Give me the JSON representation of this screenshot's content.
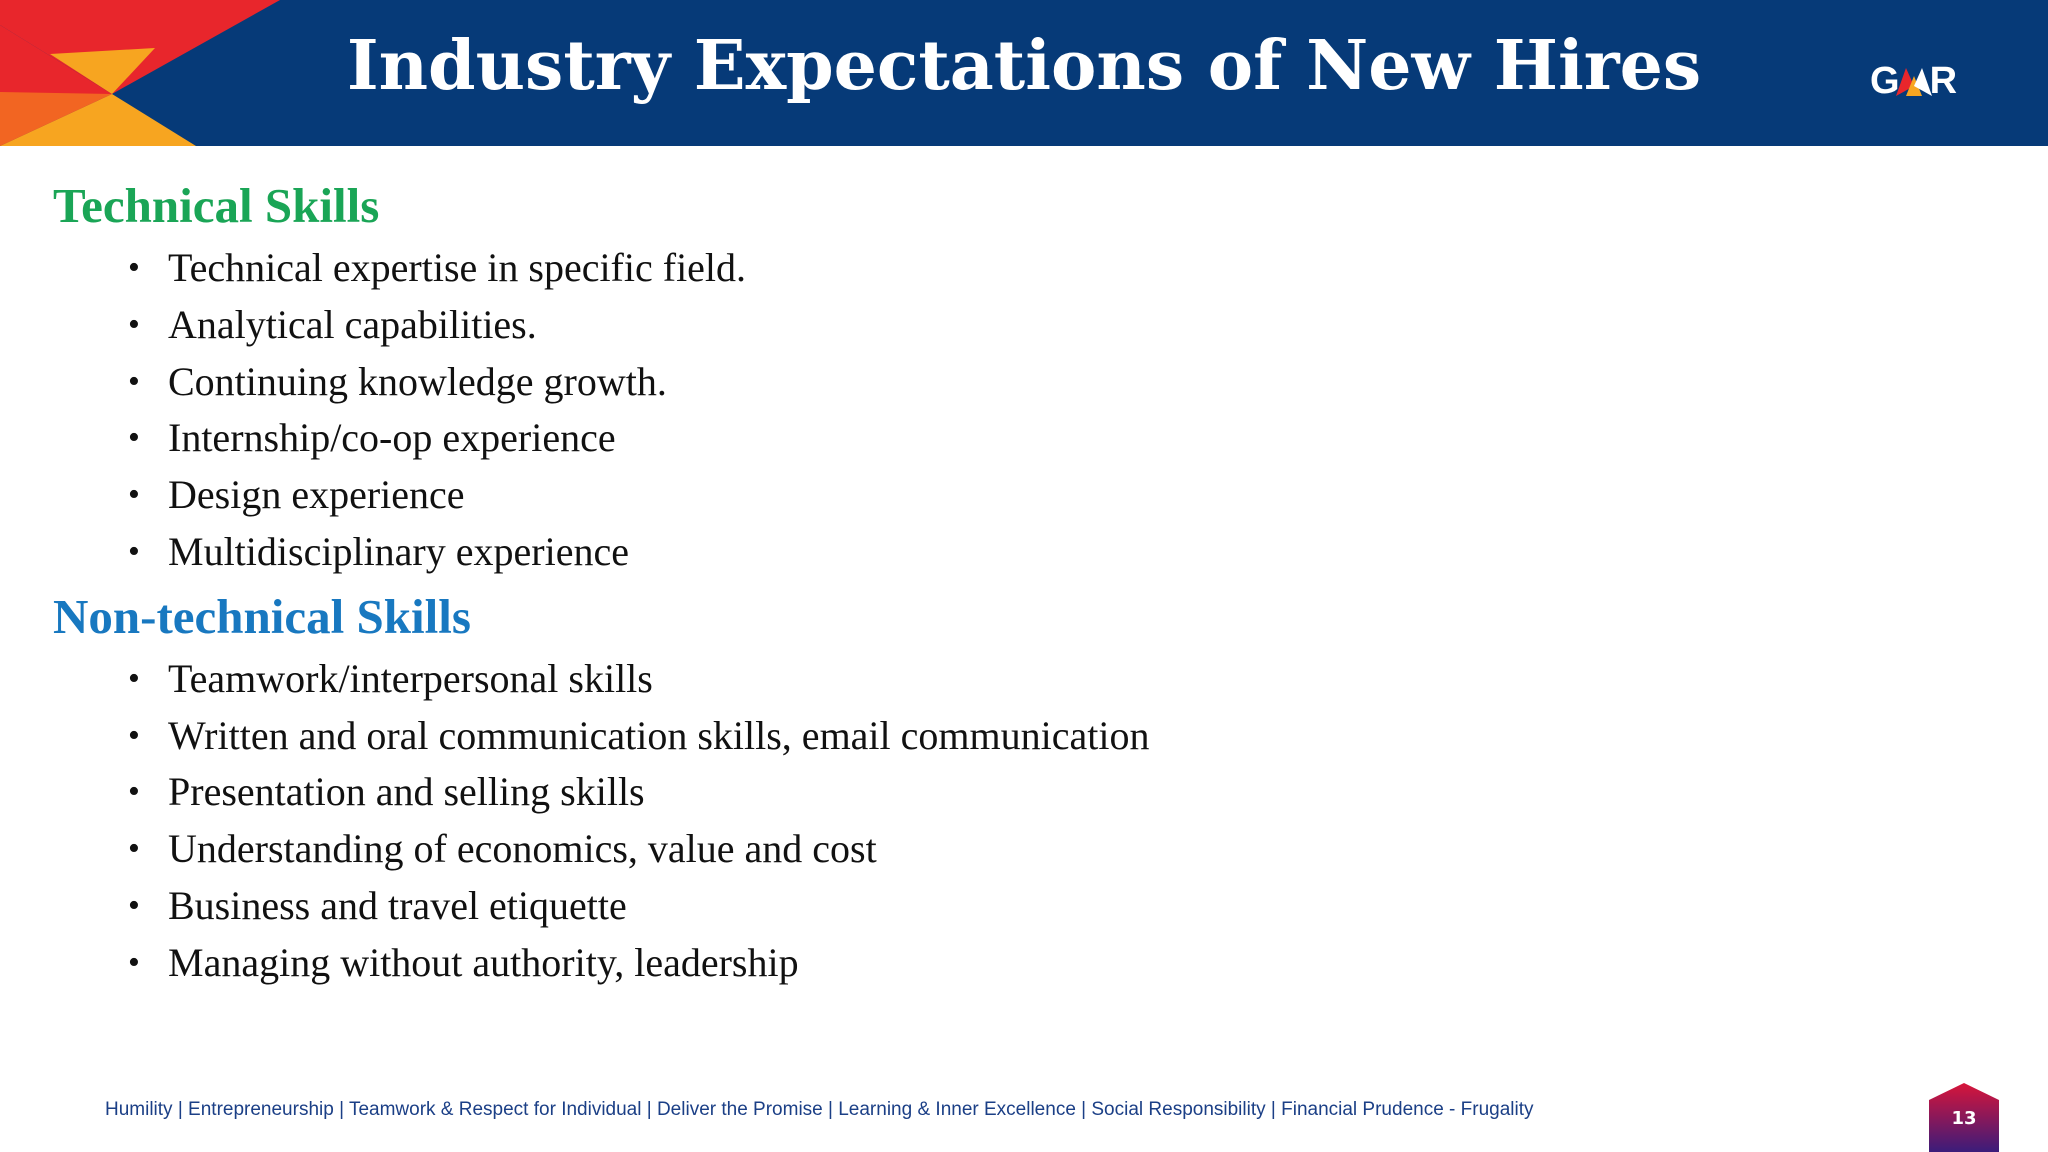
{
  "slide": {
    "title": "Industry Expectations of New Hires",
    "logo_text_left": "G",
    "logo_text_right": "R",
    "logo_icon": "gmr-logo-icon"
  },
  "sections": [
    {
      "heading": "Technical Skills",
      "color": "#1aa556",
      "items": [
        "Technical expertise in specific field.",
        "Analytical capabilities.",
        "Continuing knowledge growth.",
        "Internship/co-op experience",
        "Design experience",
        "Multidisciplinary experience"
      ]
    },
    {
      "heading": "Non-technical Skills",
      "color": "#1878c0",
      "items": [
        "Teamwork/interpersonal skills",
        "Written and oral communication skills, email communication",
        "Presentation and selling skills",
        "Understanding of economics, value and cost",
        "Business and travel etiquette",
        "Managing without authority, leadership"
      ]
    }
  ],
  "footer": {
    "values": "Humility | Entrepreneurship | Teamwork & Respect for Individual | Deliver the Promise | Learning & Inner Excellence | Social Responsibility | Financial Prudence - Frugality",
    "page_number": "13"
  },
  "colors": {
    "header_bg": "#063a78",
    "accent_red": "#e8262c",
    "accent_orange": "#f7a520",
    "badge_top": "#d7153a",
    "badge_bottom": "#3b1c7a"
  }
}
